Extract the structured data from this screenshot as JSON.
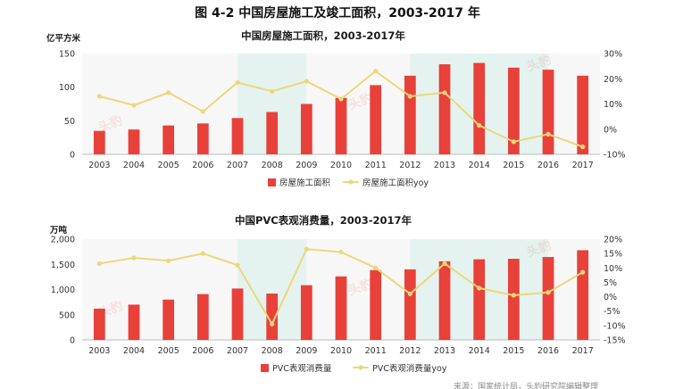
{
  "figure_title": "图 4-2 中国房屋施工及竣工面积，2003-2017 年",
  "watermark_text": "头豹",
  "footer_text": "来源：国家统计局，头豹研究院编辑整理",
  "colors": {
    "bar": "#e8413a",
    "line": "#ecd77a",
    "shade": "#e4f3ef",
    "plotbg": "#f7f7f7"
  },
  "chart_data": [
    {
      "type": "bar+line",
      "title": "中国房屋施工面积，2003-2017年",
      "ylabel_left": "亿平方米",
      "categories": [
        "2003",
        "2004",
        "2005",
        "2006",
        "2007",
        "2008",
        "2009",
        "2010",
        "2011",
        "2012",
        "2013",
        "2014",
        "2015",
        "2016",
        "2017"
      ],
      "y_left_ticks": [
        "0",
        "50",
        "100",
        "150"
      ],
      "ylim_left": [
        0,
        150
      ],
      "y_right_ticks": [
        "-10%",
        "0%",
        "10%",
        "20%",
        "30%"
      ],
      "ylim_right": [
        -10,
        30
      ],
      "shaded_spans": [
        [
          "2007",
          "2009"
        ],
        [
          "2012",
          "2016"
        ]
      ],
      "series": [
        {
          "name": "房屋施工面积",
          "type": "bar",
          "axis": "left",
          "values": [
            35,
            37,
            43,
            46,
            54,
            63,
            75,
            84,
            103,
            117,
            134,
            136,
            129,
            126,
            117
          ]
        },
        {
          "name": "房屋施工面积yoy",
          "type": "line",
          "axis": "right",
          "values": [
            13,
            9.5,
            14.5,
            7,
            18.5,
            15,
            19,
            12,
            23,
            13,
            14.5,
            1.5,
            -5,
            -2,
            -7
          ]
        }
      ],
      "legend": "bottom"
    },
    {
      "type": "bar+line",
      "title": "中国PVC表观消费量，2003-2017年",
      "ylabel_left": "万吨",
      "categories": [
        "2003",
        "2004",
        "2005",
        "2006",
        "2007",
        "2008",
        "2009",
        "2010",
        "2011",
        "2012",
        "2013",
        "2014",
        "2015",
        "2016",
        "2017"
      ],
      "y_left_ticks": [
        "0",
        "500",
        "1,000",
        "1,500",
        "2,000"
      ],
      "ylim_left": [
        0,
        2000
      ],
      "y_right_ticks": [
        "-15%",
        "-10%",
        "-5%",
        "0%",
        "5%",
        "10%",
        "15%",
        "20%"
      ],
      "ylim_right": [
        -15,
        20
      ],
      "shaded_spans": [
        [
          "2007",
          "2009"
        ],
        [
          "2012",
          "2016"
        ]
      ],
      "series": [
        {
          "name": "PVC表观消费量",
          "type": "bar",
          "axis": "left",
          "values": [
            620,
            700,
            800,
            910,
            1020,
            920,
            1085,
            1260,
            1385,
            1400,
            1560,
            1600,
            1610,
            1645,
            1780
          ]
        },
        {
          "name": "PVC表观消费量yoy",
          "type": "line",
          "axis": "right",
          "values": [
            11.5,
            13.5,
            12.5,
            15,
            11,
            -9.5,
            16.5,
            15.5,
            10,
            1,
            11.5,
            3,
            0.5,
            1.5,
            8.5
          ]
        }
      ],
      "legend": "bottom"
    }
  ]
}
